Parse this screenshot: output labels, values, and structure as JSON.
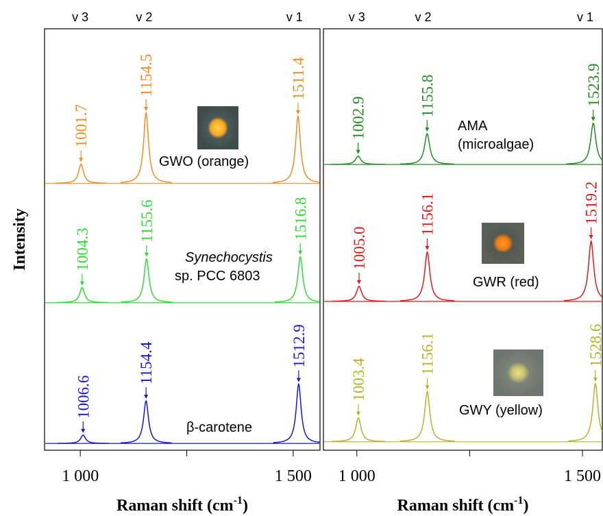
{
  "chart_data": [
    {
      "type": "spectrum",
      "ylabel": "Intensity",
      "xlabel": [
        "Raman shift (cm",
        "-1",
        ")"
      ],
      "xlim": [
        916,
        1563
      ],
      "xticks": [
        {
          "value": 1000,
          "label": "1 000"
        },
        {
          "value": 1500,
          "label": "1 500"
        }
      ],
      "xminor": [
        1250
      ],
      "ylim": [
        0,
        100
      ],
      "bands": [
        "v 3",
        "v 2",
        "v 1"
      ],
      "band_positions": [
        1000,
        1150,
        1503
      ],
      "series": [
        {
          "name": [
            "GWO (orange)"
          ],
          "name_italic": [
            false
          ],
          "color": "#f08a24",
          "offset": 63.3,
          "peaks": [
            1001.7,
            1154.5,
            1511.4
          ],
          "peak_labels": [
            "1001.7",
            "1154.5",
            "1511.4"
          ],
          "intensity": [
            4.6,
            16.7,
            15.9
          ]
        },
        {
          "name": [
            "Synechocystis",
            "sp. PCC 6803"
          ],
          "name_italic": [
            true,
            false
          ],
          "color": "#2fdc2f",
          "offset": 35.0,
          "peaks": [
            1004.3,
            1155.6,
            1516.8
          ],
          "peak_labels": [
            "1004.3",
            "1155.6",
            "1516.8"
          ],
          "intensity": [
            3.6,
            10.4,
            10.9
          ]
        },
        {
          "name": [
            "β-carotene"
          ],
          "name_italic": [
            false
          ],
          "color": "#1414d2",
          "offset": 1.6,
          "peaks": [
            1006.6,
            1154.4,
            1512.9
          ],
          "peak_labels": [
            "1006.6",
            "1154.4",
            "1512.9"
          ],
          "intensity": [
            2.0,
            10.1,
            14.1
          ]
        }
      ]
    },
    {
      "type": "spectrum",
      "xlabel": [
        "Raman shift (cm",
        "-1",
        ")"
      ],
      "xlim": [
        926,
        1544
      ],
      "xticks": [
        {
          "value": 1000,
          "label": "1 000"
        },
        {
          "value": 1500,
          "label": "1 500"
        }
      ],
      "xminor": [
        1250
      ],
      "ylim": [
        0,
        100
      ],
      "bands": [
        "v 3",
        "v 2",
        "v 1"
      ],
      "band_positions": [
        1000,
        1147,
        1506
      ],
      "series": [
        {
          "name": [
            "AMA",
            "(microalgae)"
          ],
          "name_italic": [
            false,
            false
          ],
          "color": "#1f8a1f",
          "offset": 67.8,
          "peaks": [
            1002.9,
            1155.8,
            1523.9
          ],
          "peak_labels": [
            "1002.9",
            "1155.8",
            "1523.9"
          ],
          "intensity": [
            2.0,
            7.3,
            9.8
          ]
        },
        {
          "name": [
            "GWR (red)"
          ],
          "name_italic": [
            false
          ],
          "color": "#e41616",
          "offset": 35.3,
          "peaks": [
            1005.0,
            1156.1,
            1519.2
          ],
          "peak_labels": [
            "1005.0",
            "1156.1",
            "1519.2"
          ],
          "intensity": [
            3.6,
            11.7,
            14.3
          ]
        },
        {
          "name": [
            "GWY (yellow)"
          ],
          "name_italic": [
            false
          ],
          "color": "#b4b424",
          "offset": 2.0,
          "peaks": [
            1003.4,
            1156.1,
            1528.6
          ],
          "peak_labels": [
            "1003.4",
            "1156.1",
            "1528.6"
          ],
          "intensity": [
            5.7,
            11.9,
            13.8
          ]
        }
      ]
    }
  ]
}
